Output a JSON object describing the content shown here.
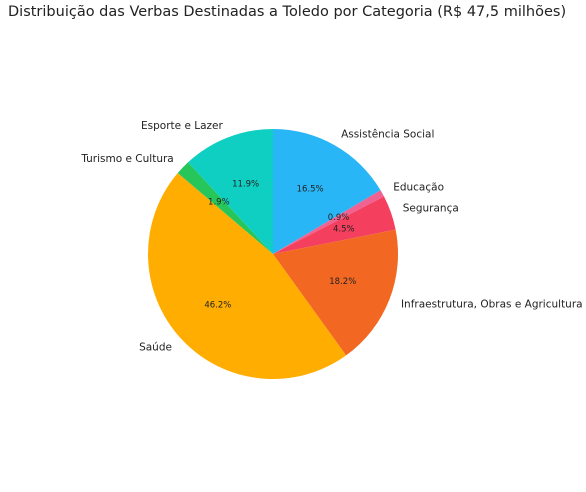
{
  "chart_data": {
    "type": "pie",
    "title": "Distribuição das Verbas Destinadas a Toledo por Categoria (R$ 47,5 milhões)",
    "slices": [
      {
        "label": "Assistência Social",
        "percent": 16.5,
        "pct_label": "16.5%",
        "color": "#29b6f6"
      },
      {
        "label": "Educação",
        "percent": 0.9,
        "pct_label": "0.9%",
        "color": "#f06292"
      },
      {
        "label": "Segurança",
        "percent": 4.5,
        "pct_label": "4.5%",
        "color": "#f43f5e"
      },
      {
        "label": "Infraestrutura, Obras e Agricultura",
        "percent": 18.2,
        "pct_label": "18.2%",
        "color": "#f26722"
      },
      {
        "label": "Saúde",
        "percent": 46.2,
        "pct_label": "46.2%",
        "color": "#ffad00"
      },
      {
        "label": "Turismo e Cultura",
        "percent": 1.9,
        "pct_label": "1.9%",
        "color": "#27c65a"
      },
      {
        "label": "Esporte e Lazer",
        "percent": 11.9,
        "pct_label": "11.9%",
        "color": "#0fcfc2"
      }
    ],
    "start_angle_deg": 90,
    "direction": "clockwise",
    "legend": "none"
  }
}
